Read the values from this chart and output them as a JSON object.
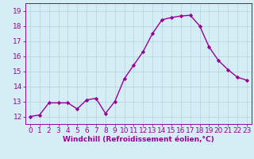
{
  "x": [
    0,
    1,
    2,
    3,
    4,
    5,
    6,
    7,
    8,
    9,
    10,
    11,
    12,
    13,
    14,
    15,
    16,
    17,
    18,
    19,
    20,
    21,
    22,
    23
  ],
  "y": [
    12.0,
    12.1,
    12.9,
    12.9,
    12.9,
    12.5,
    13.1,
    13.2,
    12.2,
    13.0,
    14.5,
    15.4,
    16.3,
    17.5,
    18.4,
    18.55,
    18.65,
    18.7,
    18.0,
    16.6,
    15.7,
    15.1,
    14.6,
    14.4
  ],
  "line_color": "#990099",
  "marker": "D",
  "markersize": 2.2,
  "linewidth": 1.0,
  "bg_color": "#d5eef5",
  "grid_color": "#b8d8e0",
  "xlabel": "Windchill (Refroidissement éolien,°C)",
  "xlabel_fontsize": 6.5,
  "tick_fontsize": 6.5,
  "ylim": [
    11.5,
    19.5
  ],
  "xlim": [
    -0.5,
    23.5
  ],
  "yticks": [
    12,
    13,
    14,
    15,
    16,
    17,
    18,
    19
  ],
  "xticks": [
    0,
    1,
    2,
    3,
    4,
    5,
    6,
    7,
    8,
    9,
    10,
    11,
    12,
    13,
    14,
    15,
    16,
    17,
    18,
    19,
    20,
    21,
    22,
    23
  ]
}
